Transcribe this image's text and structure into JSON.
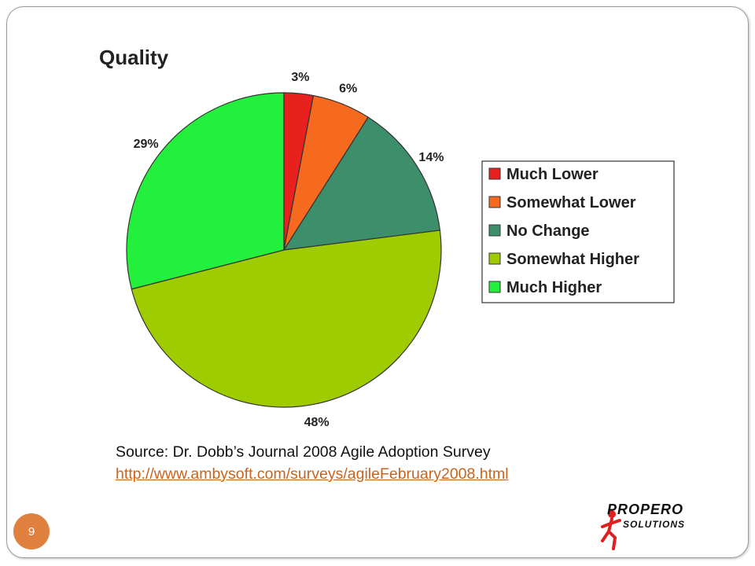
{
  "chart_data": {
    "type": "pie",
    "title": "Quality",
    "slices": [
      {
        "label": "Much Lower",
        "value": 3,
        "display": "3%",
        "color": "#e8211f"
      },
      {
        "label": "Somewhat Lower",
        "value": 6,
        "display": "6%",
        "color": "#f56a1e"
      },
      {
        "label": "No Change",
        "value": 14,
        "display": "14%",
        "color": "#3c8f6a"
      },
      {
        "label": "Somewhat Higher",
        "value": 48,
        "display": "48%",
        "color": "#9fcc00"
      },
      {
        "label": "Much Higher",
        "value": 29,
        "display": "29%",
        "color": "#22f03c"
      }
    ],
    "legend_position": "right"
  },
  "source": {
    "text": "Source: Dr. Dobb’s Journal 2008 Agile Adoption Survey",
    "link": "http://www.ambysoft.com/surveys/agileFebruary2008.html"
  },
  "page_number": "9",
  "logo": {
    "line1": "PROPERO",
    "line2": "SOLUTIONS",
    "accent_color": "#e02020"
  }
}
